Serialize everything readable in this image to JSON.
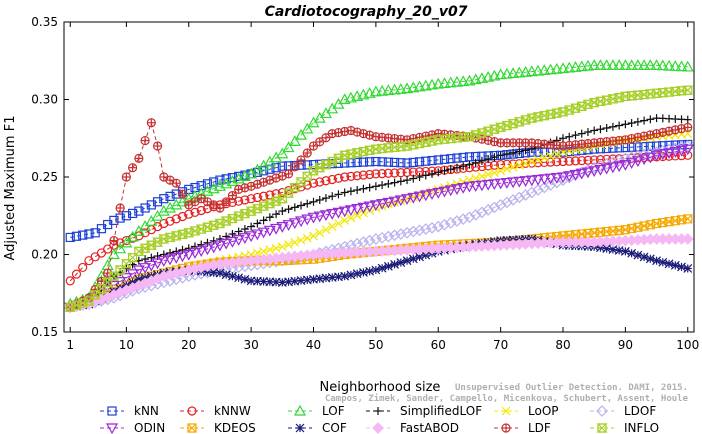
{
  "chart_data": {
    "type": "line",
    "title": "Cardiotocography_20_v07",
    "xlabel": "Neighborhood size",
    "ylabel": "Adjusted Maximum F1",
    "xlim": [
      0,
      101
    ],
    "ylim": [
      0.15,
      0.35
    ],
    "x_ticks": [
      1,
      10,
      20,
      30,
      40,
      50,
      60,
      70,
      80,
      90,
      100
    ],
    "y_ticks": [
      0.15,
      0.2,
      0.25,
      0.3,
      0.35
    ],
    "y_tick_labels": [
      "0.15",
      "0.20",
      "0.25",
      "0.30",
      "0.35"
    ],
    "grid": false,
    "legend_position": "bottom",
    "watermark": [
      "Campos, Zimek, Sander, Campello, Micenkova, Schubert, Assent, Houle",
      "Unsupervised Outlier Detection. DAMI, 2015."
    ],
    "series": [
      {
        "name": "kNN",
        "color": "#1c3fd6",
        "marker": "square",
        "points": [
          [
            1,
            0.211
          ],
          [
            5,
            0.214
          ],
          [
            8,
            0.222
          ],
          [
            12,
            0.228
          ],
          [
            16,
            0.236
          ],
          [
            20,
            0.242
          ],
          [
            25,
            0.248
          ],
          [
            30,
            0.252
          ],
          [
            35,
            0.257
          ],
          [
            40,
            0.258
          ],
          [
            45,
            0.259
          ],
          [
            50,
            0.26
          ],
          [
            55,
            0.259
          ],
          [
            60,
            0.261
          ],
          [
            65,
            0.263
          ],
          [
            70,
            0.264
          ],
          [
            75,
            0.266
          ],
          [
            80,
            0.266
          ],
          [
            85,
            0.268
          ],
          [
            90,
            0.269
          ],
          [
            95,
            0.27
          ],
          [
            100,
            0.271
          ]
        ]
      },
      {
        "name": "kNNW",
        "color": "#e62020",
        "marker": "circle",
        "points": [
          [
            1,
            0.183
          ],
          [
            4,
            0.196
          ],
          [
            8,
            0.206
          ],
          [
            12,
            0.212
          ],
          [
            16,
            0.22
          ],
          [
            20,
            0.226
          ],
          [
            25,
            0.232
          ],
          [
            30,
            0.236
          ],
          [
            35,
            0.24
          ],
          [
            40,
            0.246
          ],
          [
            45,
            0.25
          ],
          [
            50,
            0.252
          ],
          [
            55,
            0.253
          ],
          [
            60,
            0.254
          ],
          [
            65,
            0.256
          ],
          [
            70,
            0.258
          ],
          [
            75,
            0.259
          ],
          [
            80,
            0.26
          ],
          [
            85,
            0.261
          ],
          [
            90,
            0.262
          ],
          [
            95,
            0.263
          ],
          [
            100,
            0.264
          ]
        ]
      },
      {
        "name": "LOF",
        "color": "#33d833",
        "marker": "triangle-up",
        "points": [
          [
            1,
            0.168
          ],
          [
            4,
            0.172
          ],
          [
            8,
            0.2
          ],
          [
            12,
            0.215
          ],
          [
            16,
            0.228
          ],
          [
            20,
            0.236
          ],
          [
            25,
            0.244
          ],
          [
            30,
            0.252
          ],
          [
            35,
            0.265
          ],
          [
            40,
            0.285
          ],
          [
            45,
            0.3
          ],
          [
            50,
            0.305
          ],
          [
            55,
            0.307
          ],
          [
            60,
            0.31
          ],
          [
            65,
            0.312
          ],
          [
            70,
            0.316
          ],
          [
            75,
            0.318
          ],
          [
            80,
            0.32
          ],
          [
            85,
            0.322
          ],
          [
            90,
            0.322
          ],
          [
            95,
            0.322
          ],
          [
            100,
            0.321
          ]
        ]
      },
      {
        "name": "SimplifiedLOF",
        "color": "#111111",
        "marker": "plus",
        "points": [
          [
            1,
            0.166
          ],
          [
            4,
            0.168
          ],
          [
            8,
            0.186
          ],
          [
            12,
            0.196
          ],
          [
            16,
            0.2
          ],
          [
            20,
            0.204
          ],
          [
            25,
            0.21
          ],
          [
            30,
            0.218
          ],
          [
            35,
            0.228
          ],
          [
            40,
            0.234
          ],
          [
            45,
            0.24
          ],
          [
            50,
            0.244
          ],
          [
            55,
            0.248
          ],
          [
            60,
            0.253
          ],
          [
            65,
            0.258
          ],
          [
            70,
            0.264
          ],
          [
            75,
            0.268
          ],
          [
            80,
            0.275
          ],
          [
            85,
            0.28
          ],
          [
            90,
            0.284
          ],
          [
            95,
            0.288
          ],
          [
            100,
            0.287
          ]
        ]
      },
      {
        "name": "LoOP",
        "color": "#f2e800",
        "marker": "x",
        "points": [
          [
            1,
            0.166
          ],
          [
            4,
            0.168
          ],
          [
            8,
            0.176
          ],
          [
            12,
            0.183
          ],
          [
            16,
            0.188
          ],
          [
            20,
            0.192
          ],
          [
            25,
            0.196
          ],
          [
            30,
            0.2
          ],
          [
            35,
            0.205
          ],
          [
            40,
            0.212
          ],
          [
            45,
            0.222
          ],
          [
            50,
            0.23
          ],
          [
            55,
            0.236
          ],
          [
            60,
            0.242
          ],
          [
            65,
            0.248
          ],
          [
            70,
            0.254
          ],
          [
            75,
            0.26
          ],
          [
            80,
            0.266
          ],
          [
            85,
            0.27
          ],
          [
            90,
            0.274
          ],
          [
            95,
            0.276
          ],
          [
            100,
            0.278
          ]
        ]
      },
      {
        "name": "LDOF",
        "color": "#b8b2ee",
        "marker": "diamond",
        "points": [
          [
            1,
            0.166
          ],
          [
            4,
            0.168
          ],
          [
            8,
            0.172
          ],
          [
            12,
            0.178
          ],
          [
            16,
            0.182
          ],
          [
            20,
            0.186
          ],
          [
            25,
            0.19
          ],
          [
            30,
            0.193
          ],
          [
            35,
            0.196
          ],
          [
            40,
            0.2
          ],
          [
            45,
            0.205
          ],
          [
            50,
            0.21
          ],
          [
            55,
            0.214
          ],
          [
            60,
            0.218
          ],
          [
            65,
            0.224
          ],
          [
            70,
            0.232
          ],
          [
            75,
            0.24
          ],
          [
            80,
            0.248
          ],
          [
            85,
            0.256
          ],
          [
            90,
            0.262
          ],
          [
            95,
            0.266
          ],
          [
            100,
            0.27
          ]
        ]
      },
      {
        "name": "ODIN",
        "color": "#9b28d6",
        "marker": "triangle-down",
        "points": [
          [
            1,
            0.166
          ],
          [
            4,
            0.17
          ],
          [
            8,
            0.18
          ],
          [
            12,
            0.19
          ],
          [
            16,
            0.196
          ],
          [
            20,
            0.2
          ],
          [
            25,
            0.206
          ],
          [
            30,
            0.212
          ],
          [
            35,
            0.218
          ],
          [
            40,
            0.224
          ],
          [
            45,
            0.228
          ],
          [
            50,
            0.232
          ],
          [
            55,
            0.236
          ],
          [
            60,
            0.24
          ],
          [
            65,
            0.244
          ],
          [
            70,
            0.246
          ],
          [
            75,
            0.248
          ],
          [
            80,
            0.25
          ],
          [
            85,
            0.254
          ],
          [
            90,
            0.258
          ],
          [
            95,
            0.264
          ],
          [
            100,
            0.268
          ]
        ]
      },
      {
        "name": "KDEOS",
        "color": "#f5a800",
        "marker": "square-x",
        "points": [
          [
            1,
            0.166
          ],
          [
            4,
            0.17
          ],
          [
            8,
            0.176
          ],
          [
            12,
            0.184
          ],
          [
            16,
            0.188
          ],
          [
            20,
            0.192
          ],
          [
            25,
            0.195
          ],
          [
            30,
            0.196
          ],
          [
            35,
            0.196
          ],
          [
            40,
            0.197
          ],
          [
            45,
            0.2
          ],
          [
            50,
            0.202
          ],
          [
            55,
            0.204
          ],
          [
            60,
            0.206
          ],
          [
            65,
            0.207
          ],
          [
            70,
            0.208
          ],
          [
            75,
            0.21
          ],
          [
            80,
            0.212
          ],
          [
            85,
            0.214
          ],
          [
            90,
            0.216
          ],
          [
            95,
            0.22
          ],
          [
            100,
            0.223
          ]
        ]
      },
      {
        "name": "COF",
        "color": "#1a1a78",
        "marker": "star",
        "points": [
          [
            1,
            0.166
          ],
          [
            4,
            0.168
          ],
          [
            8,
            0.176
          ],
          [
            12,
            0.184
          ],
          [
            16,
            0.188
          ],
          [
            20,
            0.19
          ],
          [
            25,
            0.188
          ],
          [
            30,
            0.183
          ],
          [
            35,
            0.182
          ],
          [
            40,
            0.184
          ],
          [
            45,
            0.186
          ],
          [
            50,
            0.19
          ],
          [
            55,
            0.196
          ],
          [
            60,
            0.202
          ],
          [
            65,
            0.206
          ],
          [
            70,
            0.209
          ],
          [
            75,
            0.21
          ],
          [
            80,
            0.206
          ],
          [
            85,
            0.205
          ],
          [
            90,
            0.202
          ],
          [
            95,
            0.196
          ],
          [
            100,
            0.191
          ]
        ]
      },
      {
        "name": "FastABOD",
        "color": "#f5b8f5",
        "marker": "diamond-filled",
        "points": [
          [
            1,
            0.166
          ],
          [
            4,
            0.168
          ],
          [
            8,
            0.174
          ],
          [
            12,
            0.18
          ],
          [
            16,
            0.186
          ],
          [
            20,
            0.19
          ],
          [
            25,
            0.194
          ],
          [
            30,
            0.196
          ],
          [
            35,
            0.198
          ],
          [
            40,
            0.2
          ],
          [
            45,
            0.201
          ],
          [
            50,
            0.202
          ],
          [
            55,
            0.203
          ],
          [
            60,
            0.204
          ],
          [
            65,
            0.205
          ],
          [
            70,
            0.206
          ],
          [
            75,
            0.207
          ],
          [
            80,
            0.208
          ],
          [
            85,
            0.208
          ],
          [
            90,
            0.209
          ],
          [
            95,
            0.21
          ],
          [
            100,
            0.21
          ]
        ]
      },
      {
        "name": "LDF",
        "color": "#c43232",
        "marker": "circle-plus",
        "points": [
          [
            1,
            0.166
          ],
          [
            4,
            0.172
          ],
          [
            7,
            0.188
          ],
          [
            9,
            0.23
          ],
          [
            10,
            0.25
          ],
          [
            12,
            0.262
          ],
          [
            14,
            0.285
          ],
          [
            15,
            0.27
          ],
          [
            16,
            0.25
          ],
          [
            18,
            0.246
          ],
          [
            20,
            0.232
          ],
          [
            22,
            0.236
          ],
          [
            25,
            0.23
          ],
          [
            28,
            0.242
          ],
          [
            30,
            0.244
          ],
          [
            33,
            0.248
          ],
          [
            36,
            0.252
          ],
          [
            40,
            0.27
          ],
          [
            43,
            0.278
          ],
          [
            46,
            0.28
          ],
          [
            50,
            0.276
          ],
          [
            55,
            0.274
          ],
          [
            60,
            0.278
          ],
          [
            65,
            0.276
          ],
          [
            70,
            0.272
          ],
          [
            75,
            0.272
          ],
          [
            80,
            0.27
          ],
          [
            85,
            0.272
          ],
          [
            90,
            0.274
          ],
          [
            95,
            0.278
          ],
          [
            100,
            0.282
          ]
        ]
      },
      {
        "name": "INFLO",
        "color": "#a6cf28",
        "marker": "hourglass",
        "points": [
          [
            1,
            0.166
          ],
          [
            4,
            0.17
          ],
          [
            8,
            0.186
          ],
          [
            12,
            0.202
          ],
          [
            16,
            0.21
          ],
          [
            20,
            0.214
          ],
          [
            25,
            0.22
          ],
          [
            30,
            0.228
          ],
          [
            35,
            0.236
          ],
          [
            40,
            0.254
          ],
          [
            45,
            0.264
          ],
          [
            50,
            0.268
          ],
          [
            55,
            0.27
          ],
          [
            60,
            0.274
          ],
          [
            65,
            0.276
          ],
          [
            70,
            0.282
          ],
          [
            75,
            0.288
          ],
          [
            80,
            0.292
          ],
          [
            85,
            0.298
          ],
          [
            90,
            0.302
          ],
          [
            95,
            0.304
          ],
          [
            100,
            0.306
          ]
        ]
      }
    ]
  }
}
